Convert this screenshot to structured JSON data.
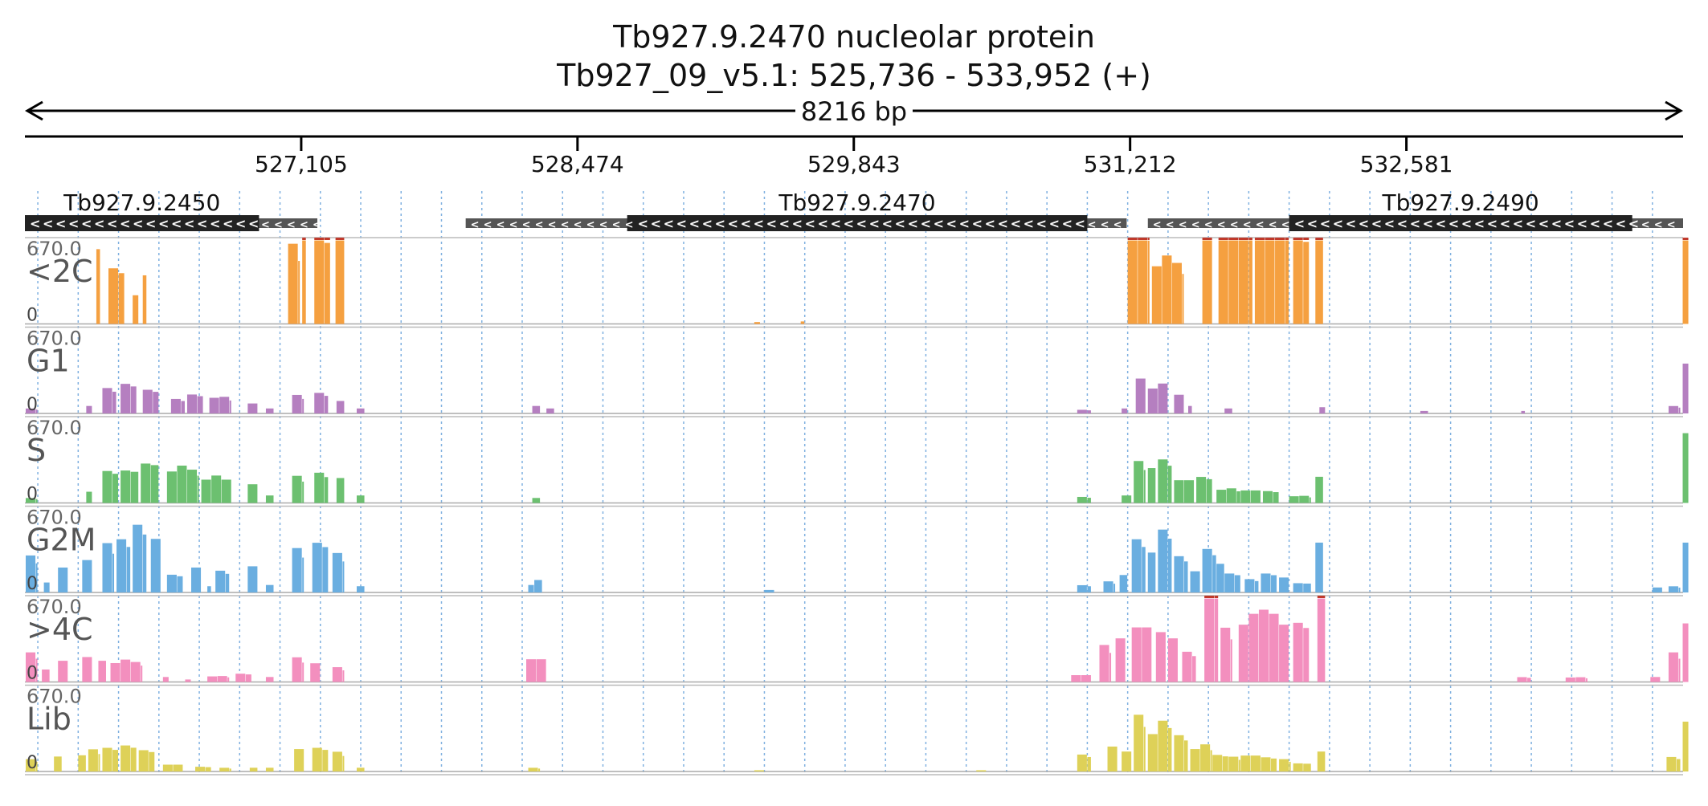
{
  "chart_data": {
    "type": "area",
    "title": "Tb927.9.2470  nucleolar protein",
    "subtitle": "Tb927_09_v5.1: 525,736 - 533,952 (+)",
    "span_label": "8216 bp",
    "xlim": [
      525736,
      533952
    ],
    "ticks": [
      {
        "pos": 527105,
        "label": "527,105"
      },
      {
        "pos": 528474,
        "label": "528,474"
      },
      {
        "pos": 529843,
        "label": "529,843"
      },
      {
        "pos": 531212,
        "label": "531,212"
      },
      {
        "pos": 532581,
        "label": "532,581"
      }
    ],
    "genes": [
      {
        "name": "Tb927.9.2450",
        "start": 525736,
        "end": 527185,
        "cds_start": 525736,
        "cds_end": 526896,
        "strand": "-"
      },
      {
        "name": "Tb927.9.2470",
        "start": 527920,
        "end": 531195,
        "cds_start": 528720,
        "cds_end": 531000,
        "strand": "-"
      },
      {
        "name": "Tb927.9.2490",
        "start": 531300,
        "end": 533952,
        "cds_start": 532000,
        "cds_end": 533700,
        "strand": "-"
      }
    ],
    "y_max_label": "670.0",
    "y_min_label": "0",
    "ylim": [
      0,
      670
    ],
    "bin_bp": 50,
    "series": [
      {
        "name": "<2C",
        "color": "#f5a040",
        "peaks": [
          [
            526090,
            526110,
            600
          ],
          [
            526150,
            526230,
            470
          ],
          [
            526270,
            526300,
            230
          ],
          [
            526320,
            526340,
            390
          ],
          [
            527040,
            527100,
            650
          ],
          [
            527110,
            527130,
            900
          ],
          [
            527170,
            527250,
            750
          ],
          [
            527275,
            527320,
            900
          ],
          [
            529350,
            529380,
            15
          ],
          [
            529580,
            529600,
            20
          ],
          [
            531200,
            531310,
            900
          ],
          [
            531320,
            531480,
            550
          ],
          [
            531570,
            531620,
            900
          ],
          [
            531650,
            531820,
            900
          ],
          [
            531830,
            532000,
            900
          ],
          [
            532020,
            532100,
            760
          ],
          [
            532130,
            532170,
            900
          ],
          [
            533950,
            533980,
            900
          ]
        ]
      },
      {
        "name": "G1",
        "color": "#b57fc0",
        "peaks": [
          [
            525740,
            525800,
            40
          ],
          [
            526040,
            526070,
            60
          ],
          [
            526120,
            526190,
            210
          ],
          [
            526210,
            526290,
            250
          ],
          [
            526320,
            526400,
            200
          ],
          [
            526460,
            526530,
            120
          ],
          [
            526540,
            526620,
            160
          ],
          [
            526650,
            526760,
            140
          ],
          [
            526840,
            526890,
            80
          ],
          [
            526930,
            526970,
            40
          ],
          [
            527060,
            527120,
            150
          ],
          [
            527170,
            527240,
            170
          ],
          [
            527280,
            527320,
            100
          ],
          [
            527380,
            527420,
            40
          ],
          [
            528250,
            528290,
            60
          ],
          [
            528320,
            528360,
            40
          ],
          [
            530950,
            531020,
            30
          ],
          [
            531170,
            531200,
            40
          ],
          [
            531240,
            531290,
            280
          ],
          [
            531300,
            531350,
            200
          ],
          [
            531350,
            531400,
            240
          ],
          [
            531430,
            531480,
            150
          ],
          [
            531500,
            531520,
            60
          ],
          [
            531680,
            531720,
            40
          ],
          [
            532150,
            532180,
            50
          ],
          [
            532650,
            532690,
            20
          ],
          [
            533150,
            533170,
            20
          ],
          [
            533880,
            533940,
            60
          ],
          [
            533950,
            533980,
            400
          ]
        ]
      },
      {
        "name": "S",
        "color": "#6cc070",
        "peaks": [
          [
            525740,
            525800,
            40
          ],
          [
            526040,
            526070,
            90
          ],
          [
            526120,
            526200,
            270
          ],
          [
            526210,
            526300,
            280
          ],
          [
            526310,
            526400,
            340
          ],
          [
            526440,
            526600,
            300
          ],
          [
            526610,
            526760,
            220
          ],
          [
            526840,
            526890,
            150
          ],
          [
            526930,
            526970,
            60
          ],
          [
            527060,
            527120,
            220
          ],
          [
            527170,
            527240,
            250
          ],
          [
            527280,
            527320,
            200
          ],
          [
            527380,
            527420,
            60
          ],
          [
            528250,
            528290,
            40
          ],
          [
            530950,
            531020,
            50
          ],
          [
            531170,
            531220,
            60
          ],
          [
            531230,
            531290,
            340
          ],
          [
            531300,
            531340,
            280
          ],
          [
            531350,
            531420,
            360
          ],
          [
            531430,
            531530,
            200
          ],
          [
            531540,
            531620,
            220
          ],
          [
            531640,
            531760,
            120
          ],
          [
            531760,
            531860,
            110
          ],
          [
            531870,
            531950,
            100
          ],
          [
            532000,
            532110,
            60
          ],
          [
            532130,
            532170,
            210
          ],
          [
            533950,
            533980,
            560
          ]
        ]
      },
      {
        "name": "G2M",
        "color": "#6aaee0",
        "peaks": [
          [
            525740,
            525800,
            300
          ],
          [
            525830,
            525860,
            80
          ],
          [
            525900,
            525950,
            200
          ],
          [
            526020,
            526070,
            260
          ],
          [
            526120,
            526180,
            400
          ],
          [
            526190,
            526260,
            440
          ],
          [
            526270,
            526340,
            560
          ],
          [
            526360,
            526410,
            430
          ],
          [
            526440,
            526520,
            150
          ],
          [
            526560,
            526610,
            200
          ],
          [
            526640,
            526660,
            50
          ],
          [
            526680,
            526750,
            180
          ],
          [
            526840,
            526890,
            210
          ],
          [
            526930,
            526970,
            60
          ],
          [
            527060,
            527120,
            360
          ],
          [
            527160,
            527240,
            420
          ],
          [
            527260,
            527320,
            320
          ],
          [
            527380,
            527420,
            50
          ],
          [
            528230,
            528260,
            60
          ],
          [
            528260,
            528300,
            100
          ],
          [
            529400,
            529450,
            20
          ],
          [
            530950,
            531020,
            60
          ],
          [
            531080,
            531140,
            90
          ],
          [
            531160,
            531200,
            140
          ],
          [
            531220,
            531290,
            440
          ],
          [
            531300,
            531340,
            320
          ],
          [
            531350,
            531420,
            520
          ],
          [
            531430,
            531500,
            300
          ],
          [
            531510,
            531560,
            170
          ],
          [
            531570,
            531640,
            360
          ],
          [
            531640,
            531680,
            230
          ],
          [
            531680,
            531760,
            160
          ],
          [
            531780,
            531850,
            110
          ],
          [
            531860,
            531940,
            160
          ],
          [
            531950,
            532000,
            120
          ],
          [
            532020,
            532110,
            80
          ],
          [
            532130,
            532170,
            400
          ],
          [
            533800,
            533850,
            40
          ],
          [
            533880,
            533940,
            50
          ],
          [
            533950,
            533980,
            400
          ]
        ]
      },
      {
        "name": ">4C",
        "color": "#f38fbe",
        "peaks": [
          [
            525740,
            525800,
            240
          ],
          [
            525820,
            525860,
            100
          ],
          [
            525900,
            525950,
            170
          ],
          [
            526020,
            526070,
            200
          ],
          [
            526100,
            526140,
            170
          ],
          [
            526160,
            526320,
            180
          ],
          [
            526420,
            526450,
            40
          ],
          [
            526530,
            526560,
            20
          ],
          [
            526640,
            526750,
            50
          ],
          [
            526780,
            526860,
            70
          ],
          [
            526930,
            526970,
            40
          ],
          [
            527060,
            527120,
            200
          ],
          [
            527150,
            527200,
            150
          ],
          [
            527260,
            527320,
            120
          ],
          [
            528220,
            528320,
            200
          ],
          [
            530920,
            531020,
            60
          ],
          [
            531060,
            531120,
            300
          ],
          [
            531140,
            531190,
            350
          ],
          [
            531220,
            531320,
            480
          ],
          [
            531340,
            531390,
            400
          ],
          [
            531400,
            531450,
            350
          ],
          [
            531470,
            531540,
            250
          ],
          [
            531580,
            531650,
            900
          ],
          [
            531660,
            531720,
            440
          ],
          [
            531750,
            532000,
            580
          ],
          [
            532020,
            532100,
            500
          ],
          [
            532140,
            532180,
            900
          ],
          [
            533130,
            533200,
            40
          ],
          [
            533370,
            533480,
            40
          ],
          [
            533790,
            533840,
            40
          ],
          [
            533880,
            533940,
            240
          ],
          [
            533950,
            533980,
            470
          ]
        ]
      },
      {
        "name": "Lib",
        "color": "#ded158",
        "peaks": [
          [
            525740,
            525800,
            100
          ],
          [
            525880,
            525920,
            120
          ],
          [
            526000,
            526040,
            130
          ],
          [
            526050,
            526110,
            180
          ],
          [
            526120,
            526200,
            200
          ],
          [
            526210,
            526290,
            220
          ],
          [
            526300,
            526380,
            180
          ],
          [
            526420,
            526520,
            60
          ],
          [
            526580,
            526660,
            40
          ],
          [
            526700,
            526760,
            30
          ],
          [
            526850,
            526890,
            30
          ],
          [
            526930,
            526970,
            30
          ],
          [
            527070,
            527120,
            180
          ],
          [
            527160,
            527240,
            200
          ],
          [
            527260,
            527320,
            160
          ],
          [
            527380,
            527420,
            30
          ],
          [
            528230,
            528290,
            30
          ],
          [
            529350,
            529400,
            10
          ],
          [
            530450,
            530500,
            10
          ],
          [
            530950,
            531020,
            140
          ],
          [
            531100,
            531150,
            200
          ],
          [
            531170,
            531220,
            160
          ],
          [
            531230,
            531290,
            460
          ],
          [
            531300,
            531350,
            300
          ],
          [
            531350,
            531420,
            420
          ],
          [
            531430,
            531500,
            300
          ],
          [
            531510,
            531560,
            180
          ],
          [
            531560,
            531620,
            220
          ],
          [
            531620,
            531700,
            140
          ],
          [
            531700,
            531760,
            120
          ],
          [
            531760,
            531860,
            140
          ],
          [
            531860,
            531940,
            120
          ],
          [
            531950,
            532010,
            100
          ],
          [
            532020,
            532110,
            70
          ],
          [
            532140,
            532180,
            160
          ],
          [
            533870,
            533940,
            120
          ],
          [
            533950,
            533980,
            400
          ]
        ]
      }
    ]
  }
}
